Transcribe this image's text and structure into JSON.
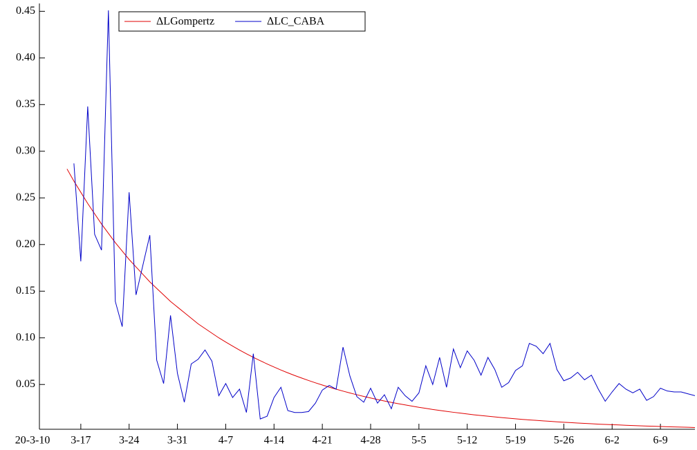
{
  "chart_data": {
    "type": "line",
    "xlim": [
      "2020-03-11",
      "2020-06-14"
    ],
    "xticks": [
      {
        "value": "2020-03-10",
        "label": "20-3-10"
      },
      {
        "value": "2020-03-17",
        "label": "3-17"
      },
      {
        "value": "2020-03-24",
        "label": "3-24"
      },
      {
        "value": "2020-03-31",
        "label": "3-31"
      },
      {
        "value": "2020-04-07",
        "label": "4-7"
      },
      {
        "value": "2020-04-14",
        "label": "4-14"
      },
      {
        "value": "2020-04-21",
        "label": "4-21"
      },
      {
        "value": "2020-04-28",
        "label": "4-28"
      },
      {
        "value": "2020-05-05",
        "label": "5-5"
      },
      {
        "value": "2020-05-12",
        "label": "5-12"
      },
      {
        "value": "2020-05-19",
        "label": "5-19"
      },
      {
        "value": "2020-05-26",
        "label": "5-26"
      },
      {
        "value": "2020-06-02",
        "label": "6-2"
      },
      {
        "value": "2020-06-09",
        "label": "6-9"
      }
    ],
    "ylim": [
      0.002,
      0.451
    ],
    "yticks": [
      0.05,
      {
        "value": 0.1,
        "label": "0.10"
      },
      0.15,
      {
        "value": 0.2,
        "label": "0.20"
      },
      0.25,
      {
        "value": 0.3,
        "label": "0.30"
      },
      0.35,
      {
        "value": 0.4,
        "label": "0.40"
      },
      0.45
    ],
    "legend": "top-left",
    "series": [
      {
        "name": "ΔLGompertz",
        "color": "#e00000",
        "x": [
          "2020-03-15",
          "2020-03-16",
          "2020-03-17",
          "2020-03-18",
          "2020-03-19",
          "2020-03-20",
          "2020-03-21",
          "2020-03-22",
          "2020-03-23",
          "2020-03-24",
          "2020-03-25",
          "2020-03-26",
          "2020-03-27",
          "2020-03-28",
          "2020-03-29",
          "2020-03-30",
          "2020-03-31",
          "2020-04-01",
          "2020-04-02",
          "2020-04-03",
          "2020-04-04",
          "2020-04-05",
          "2020-04-06",
          "2020-04-07",
          "2020-04-08",
          "2020-04-09",
          "2020-04-10",
          "2020-04-11",
          "2020-04-12",
          "2020-04-13",
          "2020-04-14",
          "2020-04-15",
          "2020-04-16",
          "2020-04-17",
          "2020-04-18",
          "2020-04-19",
          "2020-04-20",
          "2020-04-21",
          "2020-04-22",
          "2020-04-23",
          "2020-04-24",
          "2020-04-25",
          "2020-04-26",
          "2020-04-27",
          "2020-04-28",
          "2020-04-29",
          "2020-04-30",
          "2020-05-01",
          "2020-05-02",
          "2020-05-03",
          "2020-05-04",
          "2020-05-05",
          "2020-05-06",
          "2020-05-07",
          "2020-05-08",
          "2020-05-09",
          "2020-05-10",
          "2020-05-11",
          "2020-05-12",
          "2020-05-13",
          "2020-05-14",
          "2020-05-15",
          "2020-05-16",
          "2020-05-17",
          "2020-05-18",
          "2020-05-19",
          "2020-05-20",
          "2020-05-21",
          "2020-05-22",
          "2020-05-23",
          "2020-05-24",
          "2020-05-25",
          "2020-05-26",
          "2020-05-27",
          "2020-05-28",
          "2020-05-29",
          "2020-05-30",
          "2020-05-31",
          "2020-06-01",
          "2020-06-02",
          "2020-06-03",
          "2020-06-04",
          "2020-06-05",
          "2020-06-06",
          "2020-06-07",
          "2020-06-08",
          "2020-06-09",
          "2020-06-10",
          "2020-06-11",
          "2020-06-12",
          "2020-06-13",
          "2020-06-14"
        ],
        "values": [
          0.281,
          0.268,
          0.256,
          0.244,
          0.233,
          0.222,
          0.212,
          0.202,
          0.193,
          0.184,
          0.176,
          0.168,
          0.16,
          0.153,
          0.146,
          0.139,
          0.133,
          0.127,
          0.121,
          0.115,
          0.11,
          0.105,
          0.1,
          0.0955,
          0.0911,
          0.0869,
          0.0829,
          0.0791,
          0.0755,
          0.072,
          0.0687,
          0.0655,
          0.0625,
          0.0596,
          0.0569,
          0.0543,
          0.0518,
          0.0494,
          0.0471,
          0.045,
          0.0429,
          0.0409,
          0.039,
          0.0372,
          0.0355,
          0.0339,
          0.0323,
          0.0308,
          0.0294,
          0.0281,
          0.0268,
          0.0255,
          0.0244,
          0.0232,
          0.0222,
          0.0212,
          0.0202,
          0.0193,
          0.0184,
          0.0175,
          0.0167,
          0.016,
          0.0152,
          0.0145,
          0.0139,
          0.0132,
          0.0126,
          0.012,
          0.0115,
          0.011,
          0.0105,
          0.01,
          0.0095,
          0.0091,
          0.0087,
          0.0083,
          0.0079,
          0.0075,
          0.0072,
          0.0069,
          0.0066,
          0.0063,
          0.006,
          0.0057,
          0.0054,
          0.0052,
          0.005,
          0.0047,
          0.0045,
          0.0043,
          0.0041,
          0.0039
        ]
      },
      {
        "name": "ΔLC_CABA",
        "color": "#0000c8",
        "x": [
          "2020-03-16",
          "2020-03-17",
          "2020-03-18",
          "2020-03-19",
          "2020-03-20",
          "2020-03-21",
          "2020-03-22",
          "2020-03-23",
          "2020-03-24",
          "2020-03-25",
          "2020-03-26",
          "2020-03-27",
          "2020-03-28",
          "2020-03-29",
          "2020-03-30",
          "2020-03-31",
          "2020-04-01",
          "2020-04-02",
          "2020-04-03",
          "2020-04-04",
          "2020-04-05",
          "2020-04-06",
          "2020-04-07",
          "2020-04-08",
          "2020-04-09",
          "2020-04-10",
          "2020-04-11",
          "2020-04-12",
          "2020-04-13",
          "2020-04-14",
          "2020-04-15",
          "2020-04-16",
          "2020-04-17",
          "2020-04-18",
          "2020-04-19",
          "2020-04-20",
          "2020-04-21",
          "2020-04-22",
          "2020-04-23",
          "2020-04-24",
          "2020-04-25",
          "2020-04-26",
          "2020-04-27",
          "2020-04-28",
          "2020-04-29",
          "2020-04-30",
          "2020-05-01",
          "2020-05-02",
          "2020-05-03",
          "2020-05-04",
          "2020-05-05",
          "2020-05-06",
          "2020-05-07",
          "2020-05-08",
          "2020-05-09",
          "2020-05-10",
          "2020-05-11",
          "2020-05-12",
          "2020-05-13",
          "2020-05-14",
          "2020-05-15",
          "2020-05-16",
          "2020-05-17",
          "2020-05-18",
          "2020-05-19",
          "2020-05-20",
          "2020-05-21",
          "2020-05-22",
          "2020-05-23",
          "2020-05-24",
          "2020-05-25",
          "2020-05-26",
          "2020-05-27",
          "2020-05-28",
          "2020-05-29",
          "2020-05-30",
          "2020-05-31",
          "2020-06-01",
          "2020-06-02",
          "2020-06-03",
          "2020-06-04",
          "2020-06-05",
          "2020-06-06",
          "2020-06-07",
          "2020-06-08",
          "2020-06-09",
          "2020-06-10",
          "2020-06-11",
          "2020-06-12",
          "2020-06-13",
          "2020-06-14"
        ],
        "values": [
          0.287,
          0.182,
          0.348,
          0.211,
          0.194,
          0.451,
          0.139,
          0.112,
          0.256,
          0.146,
          0.178,
          0.21,
          0.076,
          0.051,
          0.124,
          0.062,
          0.031,
          0.072,
          0.077,
          0.087,
          0.075,
          0.038,
          0.051,
          0.036,
          0.045,
          0.02,
          0.083,
          0.013,
          0.016,
          0.036,
          0.047,
          0.022,
          0.02,
          0.02,
          0.021,
          0.03,
          0.044,
          0.049,
          0.045,
          0.09,
          0.059,
          0.037,
          0.031,
          0.046,
          0.03,
          0.039,
          0.024,
          0.047,
          0.038,
          0.032,
          0.041,
          0.07,
          0.05,
          0.079,
          0.047,
          0.088,
          0.068,
          0.086,
          0.076,
          0.06,
          0.079,
          0.066,
          0.047,
          0.052,
          0.065,
          0.07,
          0.094,
          0.091,
          0.083,
          0.094,
          0.066,
          0.054,
          0.057,
          0.063,
          0.055,
          0.06,
          0.045,
          0.032,
          0.042,
          0.051,
          0.045,
          0.041,
          0.045,
          0.033,
          0.037,
          0.046,
          0.043,
          0.042,
          0.042,
          0.04,
          0.038
        ]
      }
    ]
  }
}
